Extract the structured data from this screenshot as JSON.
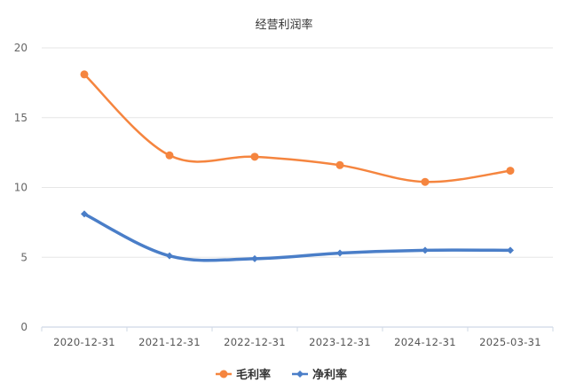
{
  "chart_data": {
    "type": "line",
    "title": "经营利润率",
    "xlabel": "",
    "ylabel": "",
    "categories": [
      "2020-12-31",
      "2021-12-31",
      "2022-12-31",
      "2023-12-31",
      "2024-12-31",
      "2025-03-31"
    ],
    "ylim": [
      0,
      20
    ],
    "yticks": [
      0,
      5,
      10,
      15,
      20
    ],
    "grid": true,
    "smooth": true,
    "legend_position": "bottom",
    "series": [
      {
        "name": "毛利率",
        "color": "#f5853f",
        "marker": "circle",
        "values": [
          18.1,
          12.3,
          12.2,
          11.6,
          10.4,
          11.2
        ]
      },
      {
        "name": "净利率",
        "color": "#4a7ec8",
        "marker": "diamond",
        "values": [
          8.1,
          5.1,
          4.9,
          5.3,
          5.5,
          5.5
        ]
      }
    ]
  },
  "colors": {
    "grid": "#e6e6e6",
    "axis": "#cfd8e6",
    "text": "#666666"
  }
}
